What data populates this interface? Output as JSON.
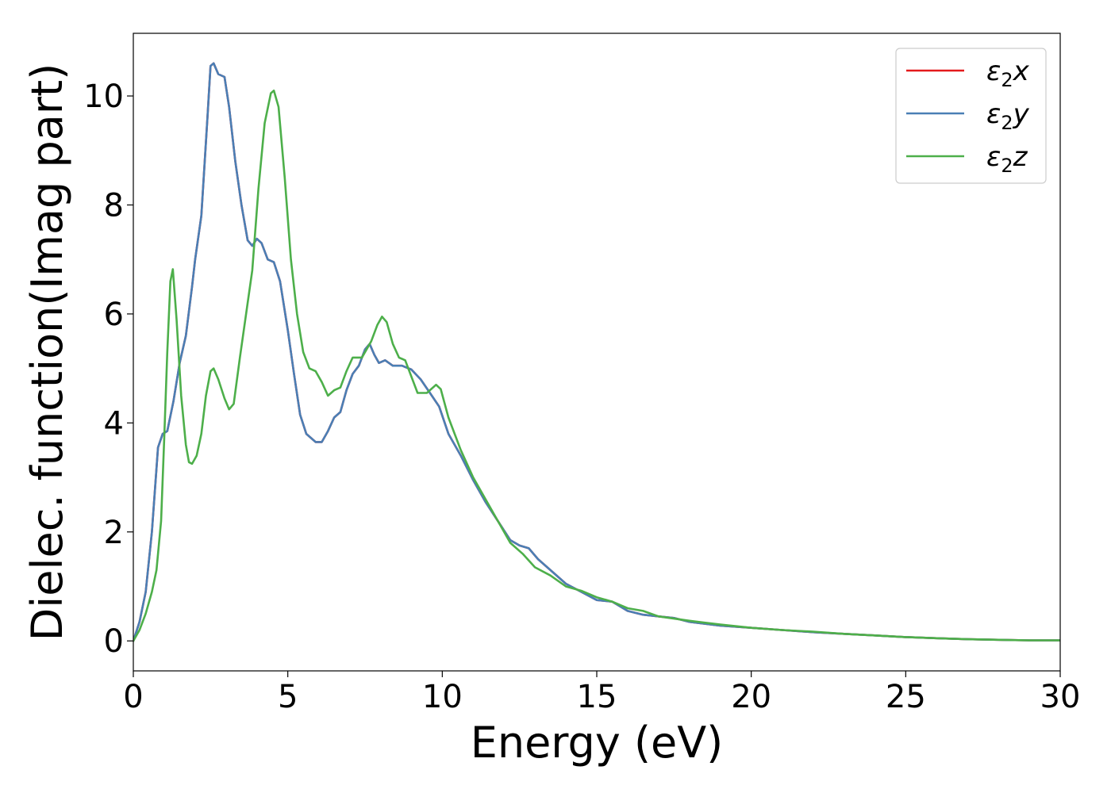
{
  "chart_data": {
    "type": "line",
    "title": "",
    "xlabel": "Energy (eV)",
    "ylabel": "Dielec. function(Imag part)",
    "xlim": [
      0,
      30
    ],
    "ylim": [
      -0.55,
      11.15
    ],
    "xticks": [
      0,
      5,
      10,
      15,
      20,
      25,
      30
    ],
    "yticks": [
      0,
      2,
      4,
      6,
      8,
      10
    ],
    "grid": false,
    "legend_position": "top-right",
    "series": [
      {
        "name": "ε₂x",
        "legend_base": "ε",
        "legend_sub": "2",
        "legend_var": "x",
        "color": "#e41a1c",
        "points": [
          [
            0,
            0.0
          ],
          [
            0.2,
            0.35
          ],
          [
            0.4,
            0.9
          ],
          [
            0.6,
            2.0
          ],
          [
            0.8,
            3.55
          ],
          [
            0.95,
            3.8
          ],
          [
            1.1,
            3.85
          ],
          [
            1.3,
            4.4
          ],
          [
            1.5,
            5.1
          ],
          [
            1.7,
            5.6
          ],
          [
            1.9,
            6.5
          ],
          [
            2.0,
            7.0
          ],
          [
            2.2,
            7.8
          ],
          [
            2.4,
            9.6
          ],
          [
            2.5,
            10.55
          ],
          [
            2.6,
            10.6
          ],
          [
            2.75,
            10.4
          ],
          [
            2.95,
            10.35
          ],
          [
            3.1,
            9.8
          ],
          [
            3.3,
            8.8
          ],
          [
            3.5,
            8.0
          ],
          [
            3.7,
            7.35
          ],
          [
            3.85,
            7.25
          ],
          [
            4.0,
            7.38
          ],
          [
            4.15,
            7.3
          ],
          [
            4.35,
            7.0
          ],
          [
            4.55,
            6.95
          ],
          [
            4.75,
            6.6
          ],
          [
            5.0,
            5.7
          ],
          [
            5.2,
            4.9
          ],
          [
            5.4,
            4.15
          ],
          [
            5.6,
            3.8
          ],
          [
            5.9,
            3.65
          ],
          [
            6.1,
            3.65
          ],
          [
            6.3,
            3.85
          ],
          [
            6.5,
            4.1
          ],
          [
            6.7,
            4.2
          ],
          [
            6.9,
            4.6
          ],
          [
            7.1,
            4.9
          ],
          [
            7.3,
            5.05
          ],
          [
            7.5,
            5.35
          ],
          [
            7.65,
            5.45
          ],
          [
            7.8,
            5.25
          ],
          [
            7.95,
            5.1
          ],
          [
            8.15,
            5.15
          ],
          [
            8.4,
            5.05
          ],
          [
            8.7,
            5.05
          ],
          [
            9.0,
            4.98
          ],
          [
            9.3,
            4.8
          ],
          [
            9.6,
            4.55
          ],
          [
            9.9,
            4.3
          ],
          [
            10.2,
            3.8
          ],
          [
            10.6,
            3.4
          ],
          [
            11.0,
            2.95
          ],
          [
            11.4,
            2.55
          ],
          [
            11.8,
            2.2
          ],
          [
            12.2,
            1.85
          ],
          [
            12.5,
            1.75
          ],
          [
            12.8,
            1.7
          ],
          [
            13.1,
            1.5
          ],
          [
            13.5,
            1.3
          ],
          [
            14.0,
            1.05
          ],
          [
            14.5,
            0.9
          ],
          [
            15.0,
            0.75
          ],
          [
            15.5,
            0.72
          ],
          [
            16.0,
            0.55
          ],
          [
            16.5,
            0.48
          ],
          [
            17.0,
            0.45
          ],
          [
            17.5,
            0.42
          ],
          [
            18.0,
            0.35
          ],
          [
            19.0,
            0.28
          ],
          [
            20.0,
            0.24
          ],
          [
            21.0,
            0.2
          ],
          [
            22.0,
            0.16
          ],
          [
            23.0,
            0.13
          ],
          [
            24.0,
            0.1
          ],
          [
            25.0,
            0.07
          ],
          [
            26.0,
            0.05
          ],
          [
            27.0,
            0.03
          ],
          [
            28.0,
            0.02
          ],
          [
            29.0,
            0.01
          ],
          [
            30.0,
            0.01
          ]
        ]
      },
      {
        "name": "ε₂y",
        "legend_base": "ε",
        "legend_sub": "2",
        "legend_var": "y",
        "color": "#4a7fb5",
        "points": [
          [
            0,
            0.0
          ],
          [
            0.2,
            0.35
          ],
          [
            0.4,
            0.9
          ],
          [
            0.6,
            2.0
          ],
          [
            0.8,
            3.55
          ],
          [
            0.95,
            3.8
          ],
          [
            1.1,
            3.85
          ],
          [
            1.3,
            4.4
          ],
          [
            1.5,
            5.1
          ],
          [
            1.7,
            5.6
          ],
          [
            1.9,
            6.5
          ],
          [
            2.0,
            7.0
          ],
          [
            2.2,
            7.8
          ],
          [
            2.4,
            9.6
          ],
          [
            2.5,
            10.55
          ],
          [
            2.6,
            10.6
          ],
          [
            2.75,
            10.4
          ],
          [
            2.95,
            10.35
          ],
          [
            3.1,
            9.8
          ],
          [
            3.3,
            8.8
          ],
          [
            3.5,
            8.0
          ],
          [
            3.7,
            7.35
          ],
          [
            3.85,
            7.25
          ],
          [
            4.0,
            7.38
          ],
          [
            4.15,
            7.3
          ],
          [
            4.35,
            7.0
          ],
          [
            4.55,
            6.95
          ],
          [
            4.75,
            6.6
          ],
          [
            5.0,
            5.7
          ],
          [
            5.2,
            4.9
          ],
          [
            5.4,
            4.15
          ],
          [
            5.6,
            3.8
          ],
          [
            5.9,
            3.65
          ],
          [
            6.1,
            3.65
          ],
          [
            6.3,
            3.85
          ],
          [
            6.5,
            4.1
          ],
          [
            6.7,
            4.2
          ],
          [
            6.9,
            4.6
          ],
          [
            7.1,
            4.9
          ],
          [
            7.3,
            5.05
          ],
          [
            7.5,
            5.35
          ],
          [
            7.65,
            5.45
          ],
          [
            7.8,
            5.25
          ],
          [
            7.95,
            5.1
          ],
          [
            8.15,
            5.15
          ],
          [
            8.4,
            5.05
          ],
          [
            8.7,
            5.05
          ],
          [
            9.0,
            4.98
          ],
          [
            9.3,
            4.8
          ],
          [
            9.6,
            4.55
          ],
          [
            9.9,
            4.3
          ],
          [
            10.2,
            3.8
          ],
          [
            10.6,
            3.4
          ],
          [
            11.0,
            2.95
          ],
          [
            11.4,
            2.55
          ],
          [
            11.8,
            2.2
          ],
          [
            12.2,
            1.85
          ],
          [
            12.5,
            1.75
          ],
          [
            12.8,
            1.7
          ],
          [
            13.1,
            1.5
          ],
          [
            13.5,
            1.3
          ],
          [
            14.0,
            1.05
          ],
          [
            14.5,
            0.9
          ],
          [
            15.0,
            0.75
          ],
          [
            15.5,
            0.72
          ],
          [
            16.0,
            0.55
          ],
          [
            16.5,
            0.48
          ],
          [
            17.0,
            0.45
          ],
          [
            17.5,
            0.42
          ],
          [
            18.0,
            0.35
          ],
          [
            19.0,
            0.28
          ],
          [
            20.0,
            0.24
          ],
          [
            21.0,
            0.2
          ],
          [
            22.0,
            0.16
          ],
          [
            23.0,
            0.13
          ],
          [
            24.0,
            0.1
          ],
          [
            25.0,
            0.07
          ],
          [
            26.0,
            0.05
          ],
          [
            27.0,
            0.03
          ],
          [
            28.0,
            0.02
          ],
          [
            29.0,
            0.01
          ],
          [
            30.0,
            0.01
          ]
        ]
      },
      {
        "name": "ε₂z",
        "legend_base": "ε",
        "legend_sub": "2",
        "legend_var": "z",
        "color": "#4daf4a",
        "points": [
          [
            0,
            0.0
          ],
          [
            0.2,
            0.2
          ],
          [
            0.4,
            0.5
          ],
          [
            0.6,
            0.9
          ],
          [
            0.75,
            1.3
          ],
          [
            0.9,
            2.2
          ],
          [
            1.0,
            3.7
          ],
          [
            1.1,
            5.3
          ],
          [
            1.2,
            6.6
          ],
          [
            1.28,
            6.82
          ],
          [
            1.4,
            5.9
          ],
          [
            1.55,
            4.5
          ],
          [
            1.7,
            3.6
          ],
          [
            1.8,
            3.28
          ],
          [
            1.9,
            3.25
          ],
          [
            2.05,
            3.4
          ],
          [
            2.2,
            3.8
          ],
          [
            2.35,
            4.5
          ],
          [
            2.5,
            4.95
          ],
          [
            2.6,
            5.0
          ],
          [
            2.75,
            4.8
          ],
          [
            2.95,
            4.45
          ],
          [
            3.1,
            4.25
          ],
          [
            3.25,
            4.35
          ],
          [
            3.45,
            5.2
          ],
          [
            3.65,
            6.0
          ],
          [
            3.85,
            6.8
          ],
          [
            4.05,
            8.3
          ],
          [
            4.25,
            9.5
          ],
          [
            4.45,
            10.05
          ],
          [
            4.55,
            10.1
          ],
          [
            4.7,
            9.8
          ],
          [
            4.9,
            8.5
          ],
          [
            5.1,
            7.0
          ],
          [
            5.3,
            6.0
          ],
          [
            5.5,
            5.3
          ],
          [
            5.7,
            5.0
          ],
          [
            5.9,
            4.95
          ],
          [
            6.1,
            4.75
          ],
          [
            6.3,
            4.5
          ],
          [
            6.5,
            4.6
          ],
          [
            6.7,
            4.65
          ],
          [
            6.9,
            4.95
          ],
          [
            7.1,
            5.2
          ],
          [
            7.4,
            5.2
          ],
          [
            7.7,
            5.5
          ],
          [
            7.9,
            5.8
          ],
          [
            8.05,
            5.95
          ],
          [
            8.2,
            5.85
          ],
          [
            8.4,
            5.45
          ],
          [
            8.6,
            5.2
          ],
          [
            8.8,
            5.15
          ],
          [
            9.0,
            4.85
          ],
          [
            9.2,
            4.55
          ],
          [
            9.5,
            4.55
          ],
          [
            9.8,
            4.7
          ],
          [
            9.95,
            4.62
          ],
          [
            10.2,
            4.1
          ],
          [
            10.6,
            3.5
          ],
          [
            11.0,
            3.0
          ],
          [
            11.4,
            2.6
          ],
          [
            11.8,
            2.2
          ],
          [
            12.2,
            1.8
          ],
          [
            12.6,
            1.6
          ],
          [
            13.0,
            1.35
          ],
          [
            13.5,
            1.2
          ],
          [
            14.0,
            1.0
          ],
          [
            14.5,
            0.92
          ],
          [
            15.0,
            0.8
          ],
          [
            15.5,
            0.72
          ],
          [
            16.0,
            0.6
          ],
          [
            16.5,
            0.55
          ],
          [
            17.0,
            0.45
          ],
          [
            18.0,
            0.37
          ],
          [
            19.0,
            0.3
          ],
          [
            20.0,
            0.24
          ],
          [
            21.0,
            0.2
          ],
          [
            22.0,
            0.17
          ],
          [
            23.0,
            0.13
          ],
          [
            24.0,
            0.1
          ],
          [
            25.0,
            0.07
          ],
          [
            26.0,
            0.05
          ],
          [
            27.0,
            0.03
          ],
          [
            28.0,
            0.02
          ],
          [
            29.0,
            0.01
          ],
          [
            30.0,
            0.01
          ]
        ]
      }
    ]
  }
}
